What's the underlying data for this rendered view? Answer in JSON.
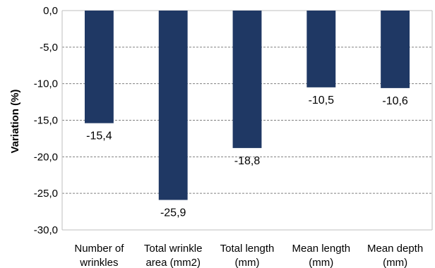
{
  "chart_data": {
    "type": "bar",
    "categories": [
      [
        "Number of",
        "wrinkles"
      ],
      [
        "Total wrinkle",
        "area (mm2)"
      ],
      [
        "Total length",
        "(mm)"
      ],
      [
        "Mean length",
        "(mm)"
      ],
      [
        "Mean depth",
        "(mm)"
      ]
    ],
    "values": [
      -15.4,
      -25.9,
      -18.8,
      -10.5,
      -10.6
    ],
    "value_labels": [
      "-15,4",
      "-25,9",
      "-18,8",
      "-10,5",
      "-10,6"
    ],
    "ylabel": "Variation (%)",
    "ylim": [
      -30,
      0
    ],
    "yticks": [
      0,
      -5,
      -10,
      -15,
      -20,
      -25,
      -30
    ],
    "ytick_labels": [
      "0,0",
      "-5,0",
      "-10,0",
      "-15,0",
      "-20,0",
      "-25,0",
      "-30,0"
    ],
    "grid": true,
    "grid_style": "dashed",
    "legend": "none",
    "bar_color": "#1f3864",
    "axis_color": "#bfbfbf",
    "grid_color": "#808080"
  }
}
